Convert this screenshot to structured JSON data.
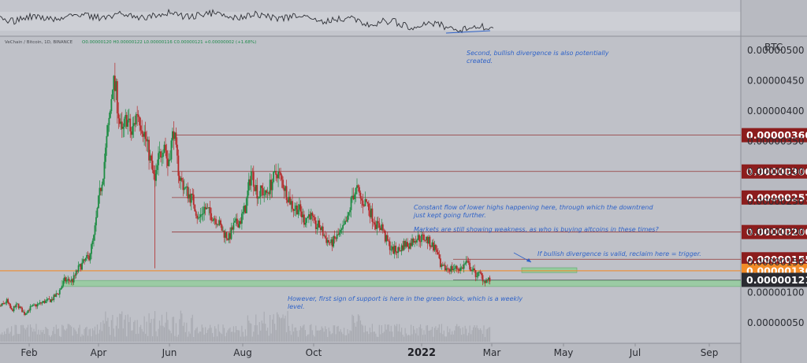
{
  "header": {
    "symbol": "VeChain / Bitcoin, 1D, BINANCE",
    "ohlc": "O0.00000120 H0.00000122 L0.00000116 C0.00000121 +0.00000002 (+1.68%)"
  },
  "chart_data": {
    "type": "candlestick",
    "currency": "BTC",
    "x_ticks": [
      "Feb",
      "Apr",
      "Jun",
      "Aug",
      "Oct",
      "2022",
      "Mar",
      "May",
      "Jul",
      "Sep"
    ],
    "y_ticks": [
      "0.00000500",
      "0.00000450",
      "0.00000400",
      "0.00000350",
      "0.00000300",
      "0.00000250",
      "0.00000200",
      "0.00000150",
      "0.00000100",
      "0.00000050"
    ],
    "ylim": [
      1.4e-07,
      5.21e-06
    ],
    "levels": [
      {
        "value": 3.6e-06,
        "label": "0.00000360",
        "color": "#8c1d1d"
      },
      {
        "value": 3e-06,
        "label": "0.00000300",
        "color": "#8c1d1d"
      },
      {
        "value": 2.57e-06,
        "label": "0.00000257",
        "color": "#8c1d1d"
      },
      {
        "value": 2e-06,
        "label": "0.00000200",
        "color": "#8c1d1d"
      },
      {
        "value": 1.55e-06,
        "label": "0.00000155",
        "color": "#8c1d1d"
      },
      {
        "value": 1.36e-06,
        "label": "0.00000136",
        "color": "#f28c28"
      },
      {
        "value": 1.21e-06,
        "label": "0.00000121",
        "color": "#2a2b31"
      }
    ],
    "support_zone": {
      "from": 1.1e-06,
      "to": 1.2e-06
    },
    "trigger_zone": {
      "from": 1.33e-06,
      "to": 1.41e-06
    },
    "price_path": [
      {
        "x": "2020-12-28",
        "y": 7.2e-07
      },
      {
        "x": "2021-01-08",
        "y": 7.8e-07
      },
      {
        "x": "2021-01-13",
        "y": 8.6e-07
      },
      {
        "x": "2021-01-17",
        "y": 7e-07
      },
      {
        "x": "2021-01-22",
        "y": 8e-07
      },
      {
        "x": "2021-01-28",
        "y": 6.5e-07
      },
      {
        "x": "2021-02-02",
        "y": 7.5e-07
      },
      {
        "x": "2021-02-14",
        "y": 8.5e-07
      },
      {
        "x": "2021-02-20",
        "y": 8.8e-07
      },
      {
        "x": "2021-02-26",
        "y": 1e-06
      },
      {
        "x": "2021-03-03",
        "y": 1.2e-06
      },
      {
        "x": "2021-03-10",
        "y": 1.2e-06
      },
      {
        "x": "2021-03-15",
        "y": 1.4e-06
      },
      {
        "x": "2021-03-24",
        "y": 1.6e-06
      },
      {
        "x": "2021-03-28",
        "y": 1.9e-06
      },
      {
        "x": "2021-04-01",
        "y": 2.5e-06
      },
      {
        "x": "2021-04-05",
        "y": 3e-06
      },
      {
        "x": "2021-04-08",
        "y": 3.5e-06
      },
      {
        "x": "2021-04-11",
        "y": 4e-06
      },
      {
        "x": "2021-04-13",
        "y": 4.5e-06
      },
      {
        "x": "2021-04-16",
        "y": 4.3e-06
      },
      {
        "x": "2021-04-19",
        "y": 3.8e-06
      },
      {
        "x": "2021-04-21",
        "y": 3.6e-06
      },
      {
        "x": "2021-04-25",
        "y": 3.9e-06
      },
      {
        "x": "2021-04-29",
        "y": 3.6e-06
      },
      {
        "x": "2021-05-04",
        "y": 4e-06
      },
      {
        "x": "2021-05-09",
        "y": 3.7e-06
      },
      {
        "x": "2021-05-14",
        "y": 3.3e-06
      },
      {
        "x": "2021-05-19",
        "y": 2.8e-06
      },
      {
        "x": "2021-05-22",
        "y": 3.2e-06
      },
      {
        "x": "2021-05-27",
        "y": 3.5e-06
      },
      {
        "x": "2021-05-30",
        "y": 3.1e-06
      },
      {
        "x": "2021-06-04",
        "y": 3.7e-06
      },
      {
        "x": "2021-06-06",
        "y": 3.3e-06
      },
      {
        "x": "2021-06-09",
        "y": 2.9e-06
      },
      {
        "x": "2021-06-14",
        "y": 2.7e-06
      },
      {
        "x": "2021-06-21",
        "y": 2.5e-06
      },
      {
        "x": "2021-06-25",
        "y": 2.2e-06
      },
      {
        "x": "2021-06-30",
        "y": 2.4e-06
      },
      {
        "x": "2021-07-05",
        "y": 2.3e-06
      },
      {
        "x": "2021-07-11",
        "y": 2.2e-06
      },
      {
        "x": "2021-07-16",
        "y": 2e-06
      },
      {
        "x": "2021-07-21",
        "y": 1.9e-06
      },
      {
        "x": "2021-07-25",
        "y": 2.1e-06
      },
      {
        "x": "2021-07-31",
        "y": 2.2e-06
      },
      {
        "x": "2021-08-04",
        "y": 2.4e-06
      },
      {
        "x": "2021-08-09",
        "y": 3e-06
      },
      {
        "x": "2021-08-12",
        "y": 2.8e-06
      },
      {
        "x": "2021-08-15",
        "y": 2.6e-06
      },
      {
        "x": "2021-08-18",
        "y": 2.7e-06
      },
      {
        "x": "2021-08-21",
        "y": 2.6e-06
      },
      {
        "x": "2021-08-26",
        "y": 2.8e-06
      },
      {
        "x": "2021-08-31",
        "y": 3e-06
      },
      {
        "x": "2021-09-05",
        "y": 2.8e-06
      },
      {
        "x": "2021-09-09",
        "y": 2.6e-06
      },
      {
        "x": "2021-09-14",
        "y": 2.4e-06
      },
      {
        "x": "2021-09-18",
        "y": 2.4e-06
      },
      {
        "x": "2021-09-23",
        "y": 2.2e-06
      },
      {
        "x": "2021-09-28",
        "y": 2.3e-06
      },
      {
        "x": "2021-10-02",
        "y": 2.1e-06
      },
      {
        "x": "2021-10-06",
        "y": 2.1e-06
      },
      {
        "x": "2021-10-11",
        "y": 1.9e-06
      },
      {
        "x": "2021-10-16",
        "y": 1.8e-06
      },
      {
        "x": "2021-10-20",
        "y": 1.9e-06
      },
      {
        "x": "2021-10-25",
        "y": 2e-06
      },
      {
        "x": "2021-10-30",
        "y": 2.2e-06
      },
      {
        "x": "2021-11-03",
        "y": 2.6e-06
      },
      {
        "x": "2021-11-07",
        "y": 2.7e-06
      },
      {
        "x": "2021-11-11",
        "y": 2.5e-06
      },
      {
        "x": "2021-11-15",
        "y": 2.5e-06
      },
      {
        "x": "2021-11-19",
        "y": 2.3e-06
      },
      {
        "x": "2021-11-24",
        "y": 2.1e-06
      },
      {
        "x": "2021-11-28",
        "y": 2.1e-06
      },
      {
        "x": "2021-12-01",
        "y": 1.9e-06
      },
      {
        "x": "2021-12-04",
        "y": 1.8e-06
      },
      {
        "x": "2021-12-07",
        "y": 1.7e-06
      },
      {
        "x": "2021-12-13",
        "y": 1.7e-06
      },
      {
        "x": "2021-12-17",
        "y": 1.8e-06
      },
      {
        "x": "2021-12-22",
        "y": 1.8e-06
      },
      {
        "x": "2021-12-26",
        "y": 1.9e-06
      },
      {
        "x": "2021-12-31",
        "y": 1.9e-06
      },
      {
        "x": "2022-01-04",
        "y": 1.9e-06
      },
      {
        "x": "2022-01-09",
        "y": 1.8e-06
      },
      {
        "x": "2022-01-14",
        "y": 1.7e-06
      },
      {
        "x": "2022-01-17",
        "y": 1.4e-06
      },
      {
        "x": "2022-01-21",
        "y": 1.4e-06
      },
      {
        "x": "2022-01-25",
        "y": 1.4e-06
      },
      {
        "x": "2022-01-30",
        "y": 1.4e-06
      },
      {
        "x": "2022-02-04",
        "y": 1.4e-06
      },
      {
        "x": "2022-02-08",
        "y": 1.5e-06
      },
      {
        "x": "2022-02-12",
        "y": 1.4e-06
      },
      {
        "x": "2022-02-16",
        "y": 1.3e-06
      },
      {
        "x": "2022-02-20",
        "y": 1.3e-06
      },
      {
        "x": "2022-02-23",
        "y": 1.2e-06
      },
      {
        "x": "2022-02-28",
        "y": 1.21e-06
      }
    ],
    "annotations": [
      "Second, bullish divergence is also potentially created.",
      "Constant flow of lower highs happening here, through which the downtrend just kept going further.",
      "Markets are still showing weakness, as who is buying altcoins in these times?",
      "If bullish divergence is valid, reclaim here = trigger.",
      "However, first sign of support is here in the green block, which is a weekly level."
    ]
  }
}
